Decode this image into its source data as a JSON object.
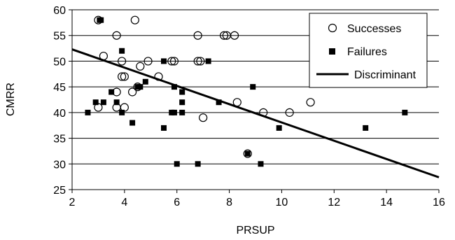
{
  "chart_data": {
    "type": "scatter",
    "title": "",
    "xlabel": "PRSUP",
    "ylabel": "CMRR",
    "xlim": [
      2,
      16
    ],
    "ylim": [
      25,
      60
    ],
    "x_ticks": [
      2,
      4,
      6,
      8,
      10,
      12,
      14,
      16
    ],
    "y_ticks": [
      25,
      30,
      35,
      40,
      45,
      50,
      55,
      60
    ],
    "grid": "horizontal",
    "legend_position": "top-right",
    "series": [
      {
        "name": "Successes",
        "marker": "open-circle",
        "points": [
          {
            "x": 3.0,
            "y": 58
          },
          {
            "x": 4.4,
            "y": 58
          },
          {
            "x": 3.7,
            "y": 55
          },
          {
            "x": 6.8,
            "y": 55
          },
          {
            "x": 7.8,
            "y": 55
          },
          {
            "x": 7.9,
            "y": 55
          },
          {
            "x": 8.2,
            "y": 55
          },
          {
            "x": 3.2,
            "y": 51
          },
          {
            "x": 3.9,
            "y": 50
          },
          {
            "x": 4.9,
            "y": 50
          },
          {
            "x": 5.8,
            "y": 50
          },
          {
            "x": 5.9,
            "y": 50
          },
          {
            "x": 6.8,
            "y": 50
          },
          {
            "x": 6.9,
            "y": 50
          },
          {
            "x": 4.6,
            "y": 49
          },
          {
            "x": 3.9,
            "y": 47
          },
          {
            "x": 4.0,
            "y": 47
          },
          {
            "x": 5.3,
            "y": 47
          },
          {
            "x": 4.5,
            "y": 45
          },
          {
            "x": 3.7,
            "y": 44
          },
          {
            "x": 4.3,
            "y": 44
          },
          {
            "x": 8.3,
            "y": 42
          },
          {
            "x": 11.1,
            "y": 42
          },
          {
            "x": 3.0,
            "y": 41
          },
          {
            "x": 3.7,
            "y": 41
          },
          {
            "x": 4.0,
            "y": 41
          },
          {
            "x": 9.3,
            "y": 40
          },
          {
            "x": 10.3,
            "y": 40
          },
          {
            "x": 7.0,
            "y": 39
          },
          {
            "x": 8.7,
            "y": 32
          }
        ]
      },
      {
        "name": "Failures",
        "marker": "filled-square",
        "points": [
          {
            "x": 3.05,
            "y": 58
          },
          {
            "x": 3.1,
            "y": 58
          },
          {
            "x": 3.9,
            "y": 52
          },
          {
            "x": 5.5,
            "y": 50
          },
          {
            "x": 7.2,
            "y": 50
          },
          {
            "x": 4.8,
            "y": 46
          },
          {
            "x": 4.5,
            "y": 45
          },
          {
            "x": 4.6,
            "y": 45
          },
          {
            "x": 5.9,
            "y": 45
          },
          {
            "x": 8.9,
            "y": 45
          },
          {
            "x": 3.5,
            "y": 44
          },
          {
            "x": 6.2,
            "y": 44
          },
          {
            "x": 2.9,
            "y": 42
          },
          {
            "x": 3.2,
            "y": 42
          },
          {
            "x": 3.7,
            "y": 42
          },
          {
            "x": 6.2,
            "y": 42
          },
          {
            "x": 7.6,
            "y": 42
          },
          {
            "x": 2.6,
            "y": 40
          },
          {
            "x": 3.9,
            "y": 40
          },
          {
            "x": 5.8,
            "y": 40
          },
          {
            "x": 5.9,
            "y": 40
          },
          {
            "x": 6.2,
            "y": 40
          },
          {
            "x": 14.7,
            "y": 40
          },
          {
            "x": 4.3,
            "y": 38
          },
          {
            "x": 5.5,
            "y": 37
          },
          {
            "x": 9.9,
            "y": 37
          },
          {
            "x": 13.2,
            "y": 37
          },
          {
            "x": 8.7,
            "y": 32
          },
          {
            "x": 6.0,
            "y": 30
          },
          {
            "x": 6.8,
            "y": 30
          },
          {
            "x": 9.2,
            "y": 30
          }
        ]
      },
      {
        "name": "Discriminant",
        "marker": "line",
        "points": [
          {
            "x": 2,
            "y": 52.3
          },
          {
            "x": 16,
            "y": 27.4
          }
        ]
      }
    ]
  },
  "colors": {
    "background": "#ffffff",
    "axis": "#000000",
    "grid": "#000000",
    "marker": "#000000"
  }
}
